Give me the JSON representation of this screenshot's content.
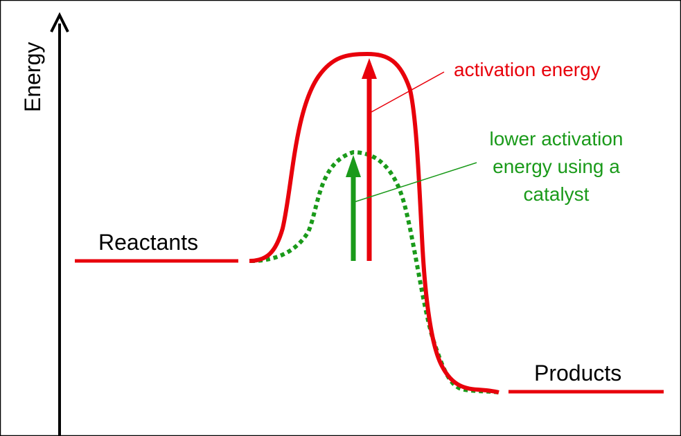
{
  "axis": {
    "y_label": "Energy"
  },
  "labels": {
    "reactants": "Reactants",
    "products": "Products",
    "activation_energy": "activation energy",
    "catalyst_line1": "lower activation",
    "catalyst_line2": "energy using a",
    "catalyst_line3": "catalyst"
  },
  "colors": {
    "uncatalyzed": "#e8000b",
    "catalyzed": "#1a9a1a",
    "axis": "#000000",
    "frame": "#000000"
  }
}
